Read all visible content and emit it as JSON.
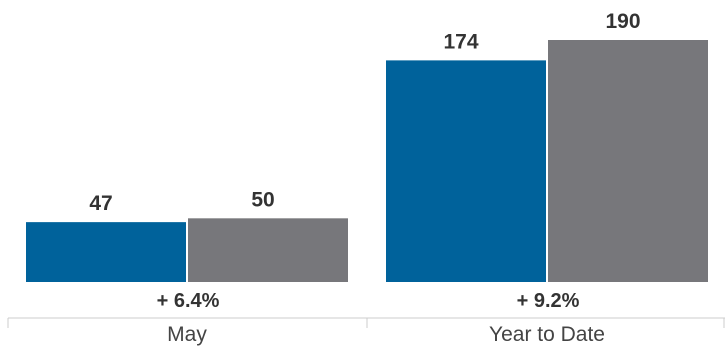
{
  "chart_data": {
    "type": "bar",
    "categories": [
      "May",
      "Year to Date"
    ],
    "series": [
      {
        "values": [
          47,
          174
        ]
      },
      {
        "values": [
          50,
          190
        ]
      }
    ],
    "changes": [
      "+ 6.4%",
      "+ 9.2%"
    ],
    "ylim": [
      0,
      190
    ],
    "grid": false,
    "colors": [
      "#00629b",
      "#77777b"
    ]
  }
}
